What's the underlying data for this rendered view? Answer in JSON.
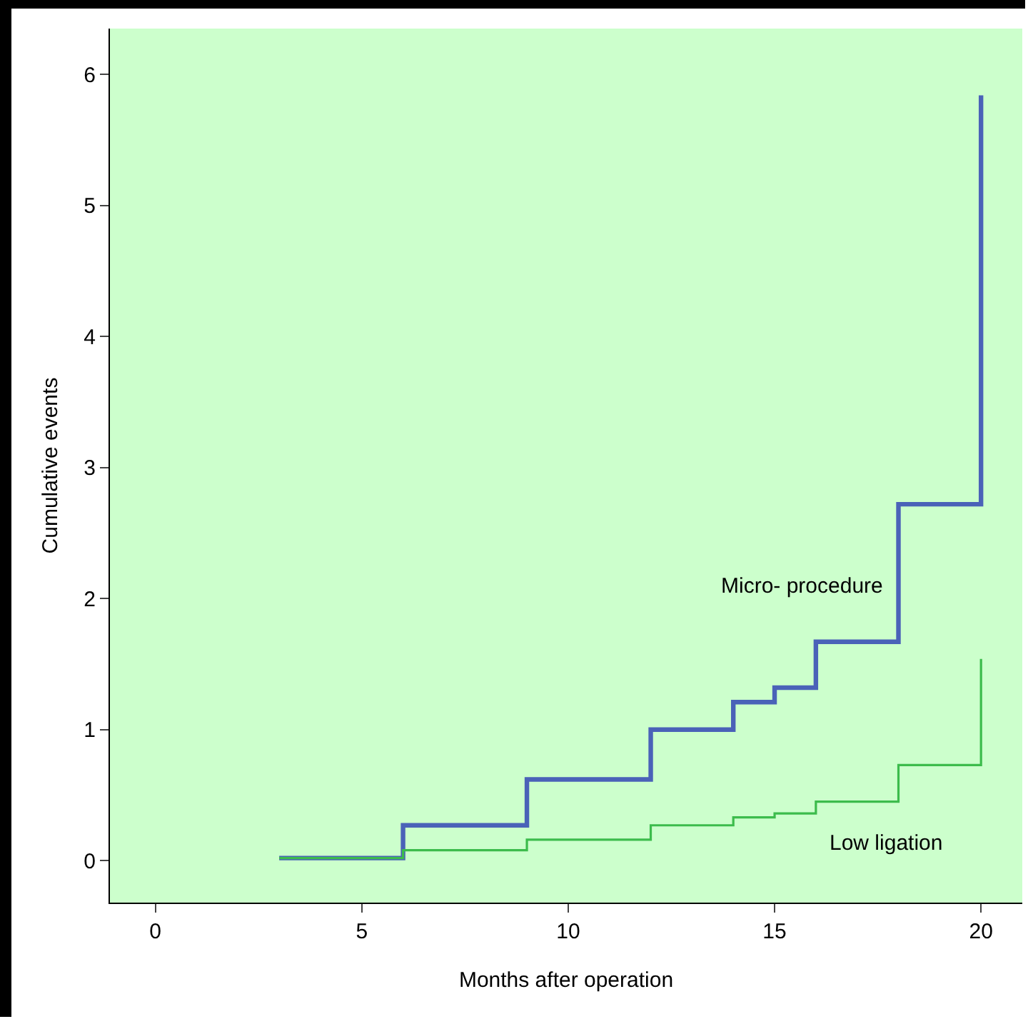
{
  "chart_data": {
    "type": "step",
    "xlabel": "Months after operation",
    "ylabel": "Cumulative events",
    "series": [
      {
        "name": "Micro- procedure",
        "color": "#4a62b8",
        "x": [
          3,
          6,
          9,
          12,
          14,
          15,
          16,
          18,
          20
        ],
        "values": [
          0.02,
          0.27,
          0.62,
          1.0,
          1.21,
          1.32,
          1.67,
          2.72,
          5.84
        ]
      },
      {
        "name": "Low ligation",
        "color": "#3cbc4c",
        "x": [
          3,
          6,
          9,
          12,
          14,
          15,
          16,
          18,
          20
        ],
        "values": [
          0.02,
          0.08,
          0.16,
          0.27,
          0.33,
          0.36,
          0.45,
          0.73,
          1.54
        ]
      }
    ],
    "xlim": [
      -1.1,
      21
    ],
    "xticks": [
      0,
      5,
      10,
      15,
      20
    ],
    "ylim": [
      -0.32,
      6.35
    ],
    "yticks": [
      0,
      1,
      2,
      3,
      4,
      5,
      6
    ],
    "grid": false,
    "legend": false
  }
}
